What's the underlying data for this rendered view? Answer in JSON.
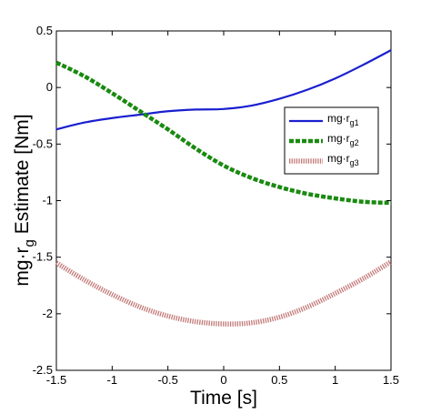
{
  "chart_data": {
    "type": "line",
    "title": "",
    "xlabel": "Time [s]",
    "ylabel_main": "mg·r",
    "ylabel_sub": "g",
    "ylabel_rest": " Estimate [Nm]",
    "xlim": [
      -1.5,
      1.5
    ],
    "ylim": [
      -2.5,
      0.5
    ],
    "x_ticks": [
      -1.5,
      -1,
      -0.5,
      0,
      0.5,
      1,
      1.5
    ],
    "x_tick_labels": [
      "-1.5",
      "-1",
      "-0.5",
      "0",
      "0.5",
      "1",
      "1.5"
    ],
    "y_ticks": [
      0.5,
      0,
      -0.5,
      -1,
      -1.5,
      -2,
      -2.5
    ],
    "y_tick_labels": [
      "0.5",
      "0",
      "-0.5",
      "-1",
      "-1.5",
      "-2",
      "-2.5"
    ],
    "grid": false,
    "legend_position": "right",
    "x": [
      -1.5,
      -1.25,
      -1.0,
      -0.75,
      -0.5,
      -0.25,
      0.0,
      0.25,
      0.5,
      0.75,
      1.0,
      1.25,
      1.5
    ],
    "series": [
      {
        "legend_main": "mg·r",
        "legend_sub": "g1",
        "color": "#1a1fcf",
        "style": "solid",
        "values": [
          -0.37,
          -0.31,
          -0.27,
          -0.24,
          -0.21,
          -0.195,
          -0.19,
          -0.16,
          -0.1,
          -0.02,
          0.08,
          0.2,
          0.33
        ]
      },
      {
        "legend_main": "mg·r",
        "legend_sub": "g2",
        "color": "#1a8a10",
        "style": "dashed",
        "values": [
          0.22,
          0.1,
          -0.05,
          -0.21,
          -0.37,
          -0.54,
          -0.69,
          -0.8,
          -0.88,
          -0.94,
          -0.98,
          -1.01,
          -1.02
        ]
      },
      {
        "legend_main": "mg·r",
        "legend_sub": "g3",
        "color": "#c27a78",
        "style": "dotted",
        "values": [
          -1.55,
          -1.7,
          -1.83,
          -1.94,
          -2.02,
          -2.07,
          -2.09,
          -2.08,
          -2.03,
          -1.94,
          -1.82,
          -1.69,
          -1.54
        ]
      }
    ]
  }
}
